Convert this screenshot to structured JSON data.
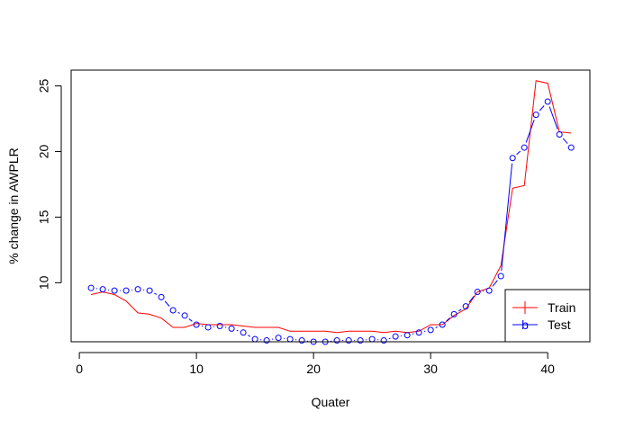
{
  "chart_data": {
    "type": "line",
    "title": "",
    "xlabel": "Quater",
    "ylabel": "% change in AWPLR",
    "xlim": [
      -0.7,
      43.6
    ],
    "ylim": [
      5.5,
      26.2
    ],
    "x_ticks": [
      0,
      10,
      20,
      30,
      40
    ],
    "y_ticks": [
      10,
      15,
      20,
      25
    ],
    "grid": false,
    "legend_position": "bottom-right",
    "series": [
      {
        "name": "Train",
        "color": "#ff0000",
        "style": "line",
        "x": [
          1,
          2,
          3,
          4,
          5,
          6,
          7,
          8,
          9,
          10,
          11,
          12,
          13,
          14,
          15,
          16,
          17,
          18,
          19,
          20,
          21,
          22,
          23,
          24,
          25,
          26,
          27,
          28,
          29,
          30,
          31,
          32,
          33,
          34,
          35,
          36,
          37,
          38,
          39,
          40,
          41,
          42
        ],
        "y": [
          9.1,
          9.3,
          9.1,
          8.6,
          7.7,
          7.6,
          7.3,
          6.6,
          6.6,
          6.9,
          6.8,
          6.8,
          6.8,
          6.7,
          6.6,
          6.6,
          6.6,
          6.3,
          6.3,
          6.3,
          6.3,
          6.2,
          6.3,
          6.3,
          6.3,
          6.2,
          6.3,
          6.2,
          6.3,
          6.8,
          6.8,
          7.5,
          8.0,
          9.3,
          9.6,
          11.3,
          17.2,
          17.4,
          25.4,
          25.2,
          21.5,
          21.4
        ]
      },
      {
        "name": "Test",
        "color": "#0000ff",
        "style": "line+points",
        "x": [
          1,
          2,
          3,
          4,
          5,
          6,
          7,
          8,
          9,
          10,
          11,
          12,
          13,
          14,
          15,
          16,
          17,
          18,
          19,
          20,
          21,
          22,
          23,
          24,
          25,
          26,
          27,
          28,
          29,
          30,
          31,
          32,
          33,
          34,
          35,
          36,
          37,
          38,
          39,
          40,
          41,
          42
        ],
        "y": [
          9.6,
          9.5,
          9.4,
          9.4,
          9.5,
          9.4,
          8.9,
          7.9,
          7.5,
          6.8,
          6.6,
          6.7,
          6.5,
          6.2,
          5.7,
          5.6,
          5.8,
          5.7,
          5.6,
          5.5,
          5.5,
          5.6,
          5.6,
          5.6,
          5.7,
          5.6,
          5.9,
          6.0,
          6.2,
          6.4,
          6.8,
          7.6,
          8.2,
          9.3,
          9.4,
          10.5,
          19.5,
          20.3,
          22.8,
          23.8,
          21.3,
          20.3
        ]
      }
    ]
  }
}
